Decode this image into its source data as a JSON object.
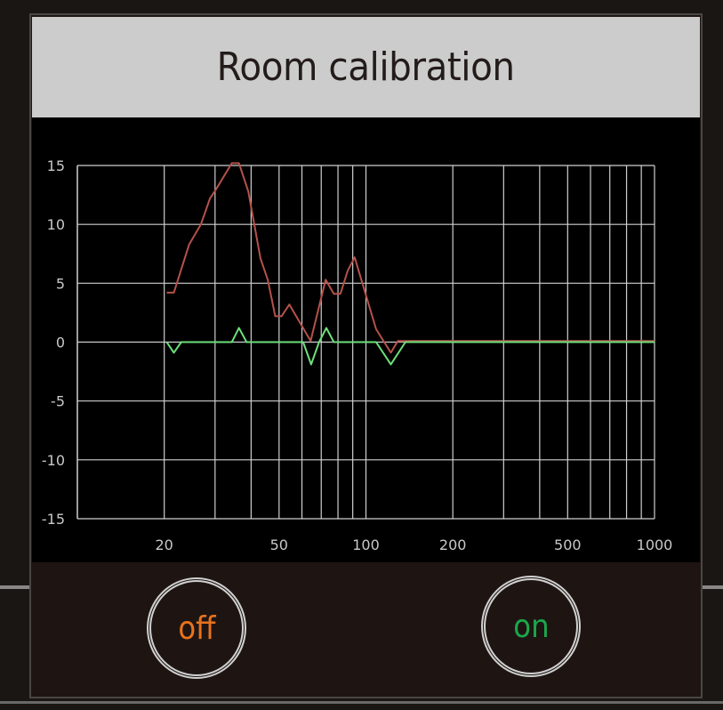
{
  "dialog": {
    "title": "Room calibration",
    "buttons": {
      "off": {
        "label": "off",
        "color": "#e8731c"
      },
      "on": {
        "label": "on",
        "color": "#1aa84a"
      }
    }
  },
  "chart_data": {
    "type": "line",
    "title": "",
    "xlabel": "",
    "ylabel": "",
    "x_scale": "log",
    "xlim": [
      10,
      1000
    ],
    "ylim": [
      -15,
      15
    ],
    "grid": true,
    "x_ticks": [
      20,
      50,
      100,
      200,
      500,
      1000
    ],
    "x_tick_labels": [
      "20",
      "50",
      "100",
      "200",
      "500",
      "1000"
    ],
    "x_gridlines": [
      20,
      30,
      40,
      50,
      60,
      70,
      80,
      90,
      100,
      200,
      300,
      400,
      500,
      600,
      700,
      800,
      900,
      1000
    ],
    "y_ticks": [
      15,
      10,
      5,
      0,
      -5,
      -10,
      -15
    ],
    "y_tick_labels": [
      "15",
      "10",
      "5",
      "0",
      "-5",
      "-10",
      "-15"
    ],
    "background": "#000000",
    "grid_color": "#cfcfcf",
    "series": [
      {
        "color": "#b5524a",
        "x": [
          20.4,
          21.6,
          24.4,
          26.8,
          28.8,
          30.1,
          34.3,
          36.3,
          39.1,
          43.1,
          45.7,
          48.5,
          51.0,
          54.3,
          64.3,
          72.5,
          77.4,
          81.6,
          86.6,
          91.4,
          108.4,
          122,
          129,
          1000
        ],
        "y": [
          4.2,
          4.2,
          8.3,
          10.0,
          12.2,
          12.9,
          15.2,
          15.2,
          12.8,
          7.1,
          5.3,
          2.2,
          2.2,
          3.2,
          0.1,
          5.3,
          4.1,
          4.1,
          6.1,
          7.2,
          1.1,
          -0.9,
          0.1,
          0.1
        ]
      },
      {
        "color": "#6de07a",
        "x": [
          20.4,
          21.6,
          22.9,
          34.3,
          36.3,
          38.6,
          60.6,
          64.6,
          68.8,
          72.9,
          77.4,
          108.4,
          122,
          137,
          1000
        ],
        "y": [
          0,
          -0.9,
          0,
          0,
          1.2,
          0,
          0,
          -1.9,
          0,
          1.2,
          0,
          0,
          -1.9,
          0,
          0
        ]
      }
    ]
  }
}
